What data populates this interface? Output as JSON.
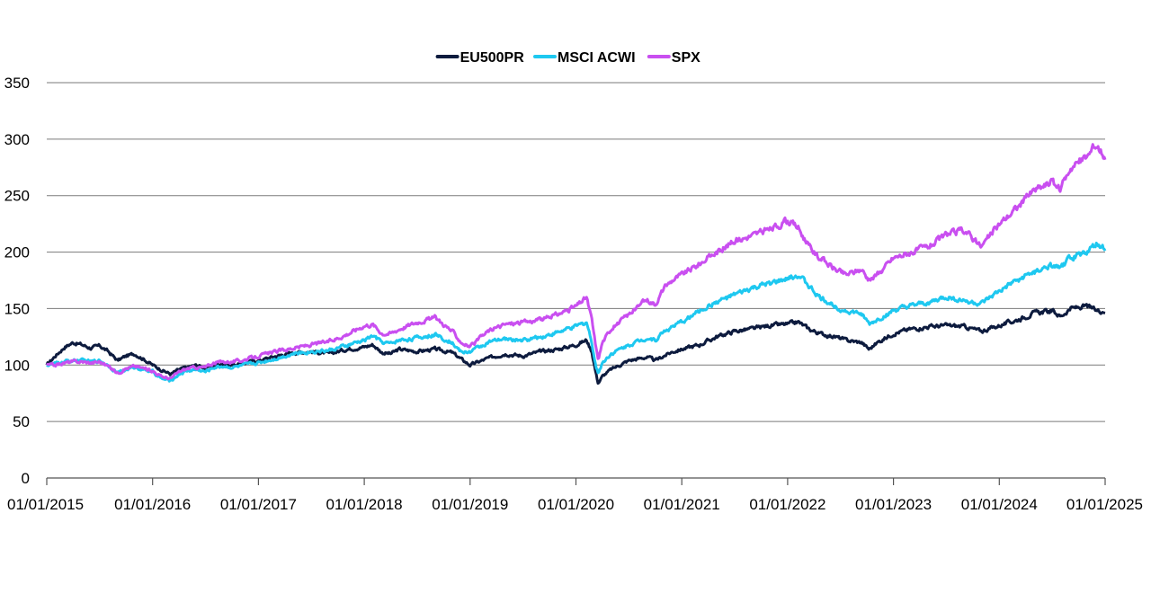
{
  "chart_data": {
    "type": "line",
    "title": "",
    "xlabel": "",
    "ylabel": "",
    "ylim": [
      0,
      350
    ],
    "yticks": [
      "0",
      "50",
      "100",
      "150",
      "200",
      "250",
      "300",
      "350"
    ],
    "xlim": [
      "2015-01-01",
      "2025-01-01"
    ],
    "xticks": [
      "01/01/2015",
      "01/01/2016",
      "01/01/2017",
      "01/01/2018",
      "01/01/2019",
      "01/01/2020",
      "01/01/2021",
      "01/01/2022",
      "01/01/2023",
      "01/01/2024",
      "01/01/2025"
    ],
    "grid": "horizontal",
    "legend": "top-center",
    "series": [
      {
        "name": "EU500PR",
        "color": "#0d1b3e",
        "x": [
          2015.0,
          2015.08,
          2015.17,
          2015.25,
          2015.33,
          2015.42,
          2015.5,
          2015.58,
          2015.67,
          2015.75,
          2015.83,
          2015.92,
          2016.0,
          2016.08,
          2016.17,
          2016.25,
          2016.33,
          2016.42,
          2016.5,
          2016.58,
          2016.67,
          2016.75,
          2016.83,
          2016.92,
          2017.0,
          2017.17,
          2017.33,
          2017.5,
          2017.67,
          2017.83,
          2018.0,
          2018.08,
          2018.17,
          2018.25,
          2018.33,
          2018.5,
          2018.67,
          2018.83,
          2018.92,
          2019.0,
          2019.17,
          2019.33,
          2019.5,
          2019.67,
          2019.83,
          2020.0,
          2020.1,
          2020.15,
          2020.19,
          2020.21,
          2020.25,
          2020.33,
          2020.5,
          2020.67,
          2020.75,
          2020.83,
          2020.92,
          2021.0,
          2021.17,
          2021.33,
          2021.5,
          2021.67,
          2021.83,
          2022.0,
          2022.1,
          2022.2,
          2022.3,
          2022.45,
          2022.55,
          2022.7,
          2022.77,
          2022.85,
          2023.0,
          2023.17,
          2023.33,
          2023.5,
          2023.67,
          2023.83,
          2024.0,
          2024.17,
          2024.33,
          2024.5,
          2024.58,
          2024.67,
          2024.83,
          2024.92,
          2025.0
        ],
        "y": [
          100,
          108,
          116,
          120,
          118,
          115,
          117,
          112,
          104,
          108,
          110,
          105,
          100,
          96,
          92,
          96,
          98,
          100,
          97,
          100,
          101,
          100,
          101,
          103,
          104,
          108,
          111,
          112,
          110,
          114,
          116,
          118,
          111,
          110,
          114,
          112,
          114,
          111,
          105,
          100,
          106,
          110,
          108,
          112,
          114,
          118,
          122,
          112,
          92,
          84,
          90,
          96,
          104,
          107,
          104,
          108,
          112,
          114,
          118,
          125,
          130,
          132,
          135,
          136,
          138,
          132,
          128,
          125,
          122,
          120,
          114,
          120,
          128,
          132,
          134,
          135,
          134,
          130,
          135,
          140,
          146,
          148,
          143,
          150,
          152,
          148,
          148
        ]
      },
      {
        "name": "MSCI ACWI",
        "color": "#1ec8f0",
        "x": [
          2015.0,
          2015.08,
          2015.17,
          2015.25,
          2015.33,
          2015.42,
          2015.5,
          2015.58,
          2015.67,
          2015.75,
          2015.83,
          2015.92,
          2016.0,
          2016.08,
          2016.17,
          2016.25,
          2016.33,
          2016.42,
          2016.5,
          2016.58,
          2016.67,
          2016.75,
          2016.83,
          2016.92,
          2017.0,
          2017.17,
          2017.33,
          2017.5,
          2017.67,
          2017.83,
          2018.0,
          2018.08,
          2018.17,
          2018.25,
          2018.33,
          2018.5,
          2018.67,
          2018.83,
          2018.92,
          2019.0,
          2019.17,
          2019.33,
          2019.5,
          2019.67,
          2019.83,
          2020.0,
          2020.1,
          2020.15,
          2020.19,
          2020.21,
          2020.25,
          2020.33,
          2020.5,
          2020.67,
          2020.75,
          2020.83,
          2020.92,
          2021.0,
          2021.17,
          2021.33,
          2021.5,
          2021.67,
          2021.83,
          2022.0,
          2022.1,
          2022.2,
          2022.3,
          2022.45,
          2022.55,
          2022.7,
          2022.77,
          2022.85,
          2023.0,
          2023.17,
          2023.33,
          2023.5,
          2023.67,
          2023.83,
          2024.0,
          2024.17,
          2024.33,
          2024.5,
          2024.58,
          2024.67,
          2024.83,
          2024.92,
          2025.0
        ],
        "y": [
          100,
          101,
          103,
          104,
          104,
          103,
          104,
          100,
          93,
          96,
          98,
          96,
          94,
          88,
          86,
          92,
          95,
          96,
          94,
          98,
          99,
          98,
          99,
          101,
          102,
          106,
          110,
          112,
          113,
          117,
          122,
          126,
          120,
          119,
          122,
          124,
          127,
          120,
          111,
          112,
          120,
          123,
          122,
          125,
          129,
          134,
          138,
          120,
          98,
          93,
          102,
          110,
          118,
          124,
          122,
          130,
          134,
          138,
          148,
          156,
          162,
          168,
          172,
          176,
          180,
          170,
          160,
          152,
          148,
          145,
          136,
          140,
          148,
          152,
          155,
          160,
          157,
          154,
          165,
          175,
          182,
          188,
          185,
          195,
          200,
          207,
          203
        ]
      },
      {
        "name": "SPX",
        "color": "#c94ff0",
        "x": [
          2015.0,
          2015.08,
          2015.17,
          2015.25,
          2015.33,
          2015.42,
          2015.5,
          2015.58,
          2015.67,
          2015.75,
          2015.83,
          2015.92,
          2016.0,
          2016.08,
          2016.17,
          2016.25,
          2016.33,
          2016.42,
          2016.5,
          2016.58,
          2016.67,
          2016.75,
          2016.83,
          2016.92,
          2017.0,
          2017.17,
          2017.33,
          2017.5,
          2017.67,
          2017.83,
          2018.0,
          2018.08,
          2018.17,
          2018.25,
          2018.33,
          2018.5,
          2018.67,
          2018.83,
          2018.92,
          2019.0,
          2019.17,
          2019.33,
          2019.5,
          2019.67,
          2019.83,
          2020.0,
          2020.1,
          2020.15,
          2020.19,
          2020.21,
          2020.25,
          2020.33,
          2020.5,
          2020.67,
          2020.75,
          2020.83,
          2020.92,
          2021.0,
          2021.17,
          2021.33,
          2021.5,
          2021.67,
          2021.83,
          2022.0,
          2022.1,
          2022.2,
          2022.3,
          2022.45,
          2022.55,
          2022.7,
          2022.77,
          2022.85,
          2023.0,
          2023.17,
          2023.33,
          2023.5,
          2023.67,
          2023.83,
          2024.0,
          2024.17,
          2024.33,
          2024.5,
          2024.58,
          2024.67,
          2024.83,
          2024.92,
          2025.0
        ],
        "y": [
          100,
          100,
          102,
          103,
          103,
          102,
          103,
          99,
          93,
          97,
          99,
          97,
          95,
          90,
          88,
          94,
          97,
          98,
          98,
          102,
          103,
          103,
          104,
          106,
          108,
          112,
          115,
          118,
          121,
          127,
          135,
          136,
          128,
          128,
          132,
          138,
          142,
          130,
          120,
          116,
          130,
          136,
          138,
          140,
          145,
          152,
          160,
          140,
          115,
          105,
          120,
          132,
          145,
          158,
          154,
          168,
          176,
          180,
          190,
          200,
          210,
          215,
          220,
          228,
          222,
          205,
          195,
          185,
          180,
          185,
          175,
          180,
          195,
          200,
          205,
          215,
          220,
          205,
          225,
          240,
          255,
          262,
          255,
          275,
          285,
          295,
          285
        ]
      }
    ]
  }
}
